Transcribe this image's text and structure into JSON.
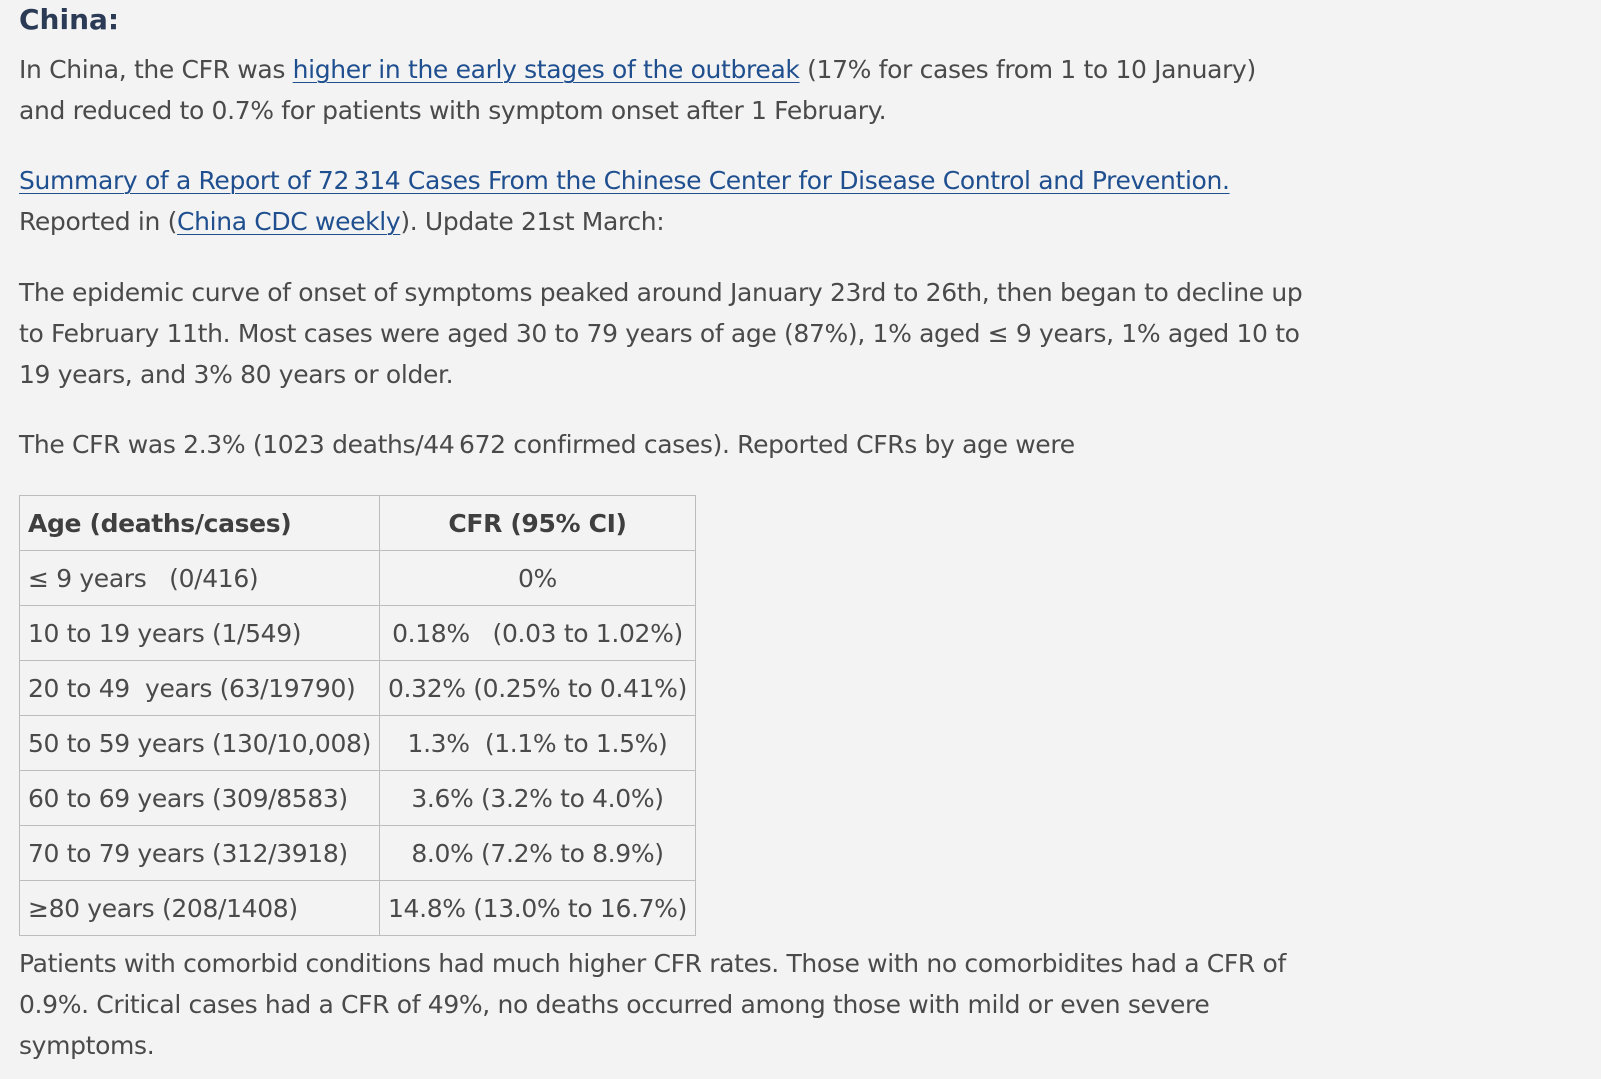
{
  "heading": "China:",
  "p1": {
    "pre": "In China, the CFR was ",
    "link": "higher in the early stages of the outbreak",
    "post": " (17% for cases from 1 to 10 January) and reduced to 0.7% for patients with symptom onset after 1 February."
  },
  "p2": {
    "link1": "Summary of a Report of 72 314 Cases From the Chinese Center for Disease Control and Prevention.",
    "mid": "Reported in (",
    "link2": "China CDC weekly",
    "post": "). Update 21st March:"
  },
  "p3": "The epidemic curve of onset of symptoms peaked around January 23rd to 26th, then began to decline up to February 11th. Most cases were aged 30 to 79 years of age (87%), 1% aged ≤ 9 years, 1% aged 10 to 19 years, and 3% 80 years or older.",
  "p4": "The CFR was 2.3% (1023 deaths/44 672 confirmed cases). Reported CFRs by age were",
  "table": {
    "headers": [
      "Age (deaths/cases)",
      "CFR (95% CI)"
    ],
    "rows": [
      [
        "≤ 9 years   (0/416)",
        "0%"
      ],
      [
        "10 to 19 years (1/549)",
        "0.18%   (0.03 to 1.02%)"
      ],
      [
        "20 to 49  years (63/19790)",
        "0.32% (0.25% to 0.41%)"
      ],
      [
        "50 to 59 years (130/10,008)",
        "1.3%  (1.1% to 1.5%)"
      ],
      [
        "60 to 69 years (309/8583)",
        "3.6% (3.2% to 4.0%)"
      ],
      [
        "70 to 79 years (312/3918)",
        "8.0% (7.2% to 8.9%)"
      ],
      [
        "≥80 years (208/1408)",
        "14.8% (13.0% to 16.7%)"
      ]
    ]
  },
  "p5": "Patients with comorbid conditions had much higher CFR rates. Those with no comorbidites had a CFR of 0.9%. Critical cases had a  CFR of 49%, no deaths occurred among those with mild or even severe symptoms."
}
